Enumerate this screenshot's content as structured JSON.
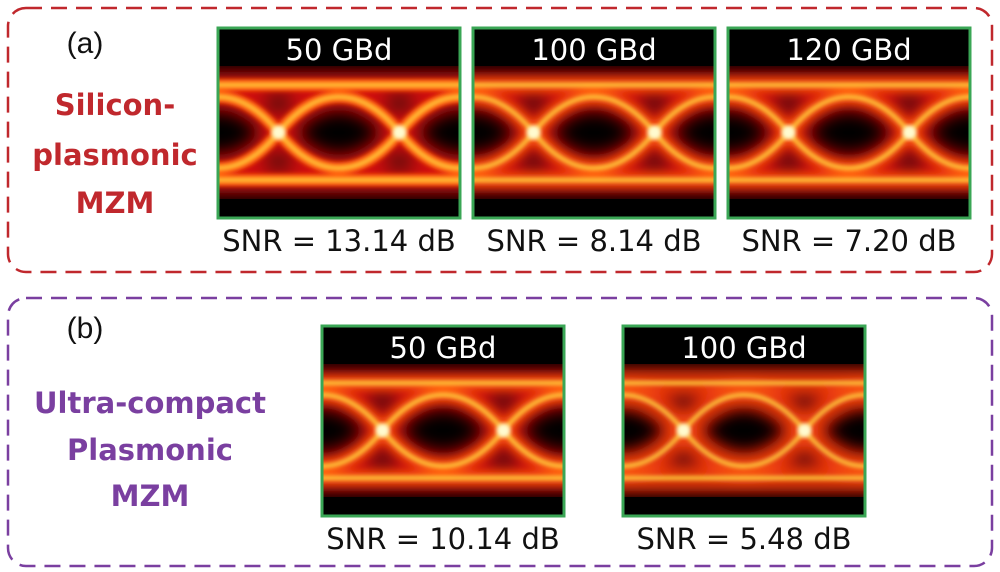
{
  "panels": [
    {
      "tag": "(a)",
      "device": [
        "Silicon-",
        "plasmonic",
        "MZM"
      ],
      "eyes": [
        {
          "rate": "50 GBd",
          "snr": "SNR = 13.14 dB"
        },
        {
          "rate": "100 GBd",
          "snr": "SNR = 8.14 dB"
        },
        {
          "rate": "120 GBd",
          "snr": "SNR = 7.20 dB"
        }
      ]
    },
    {
      "tag": "(b)",
      "device": [
        "Ultra-compact",
        "Plasmonic",
        "MZM"
      ],
      "eyes": [
        {
          "rate": "50 GBd",
          "snr": "SNR = 10.14 dB"
        },
        {
          "rate": "100 GBd",
          "snr": "SNR = 5.48 dB"
        }
      ]
    }
  ]
}
